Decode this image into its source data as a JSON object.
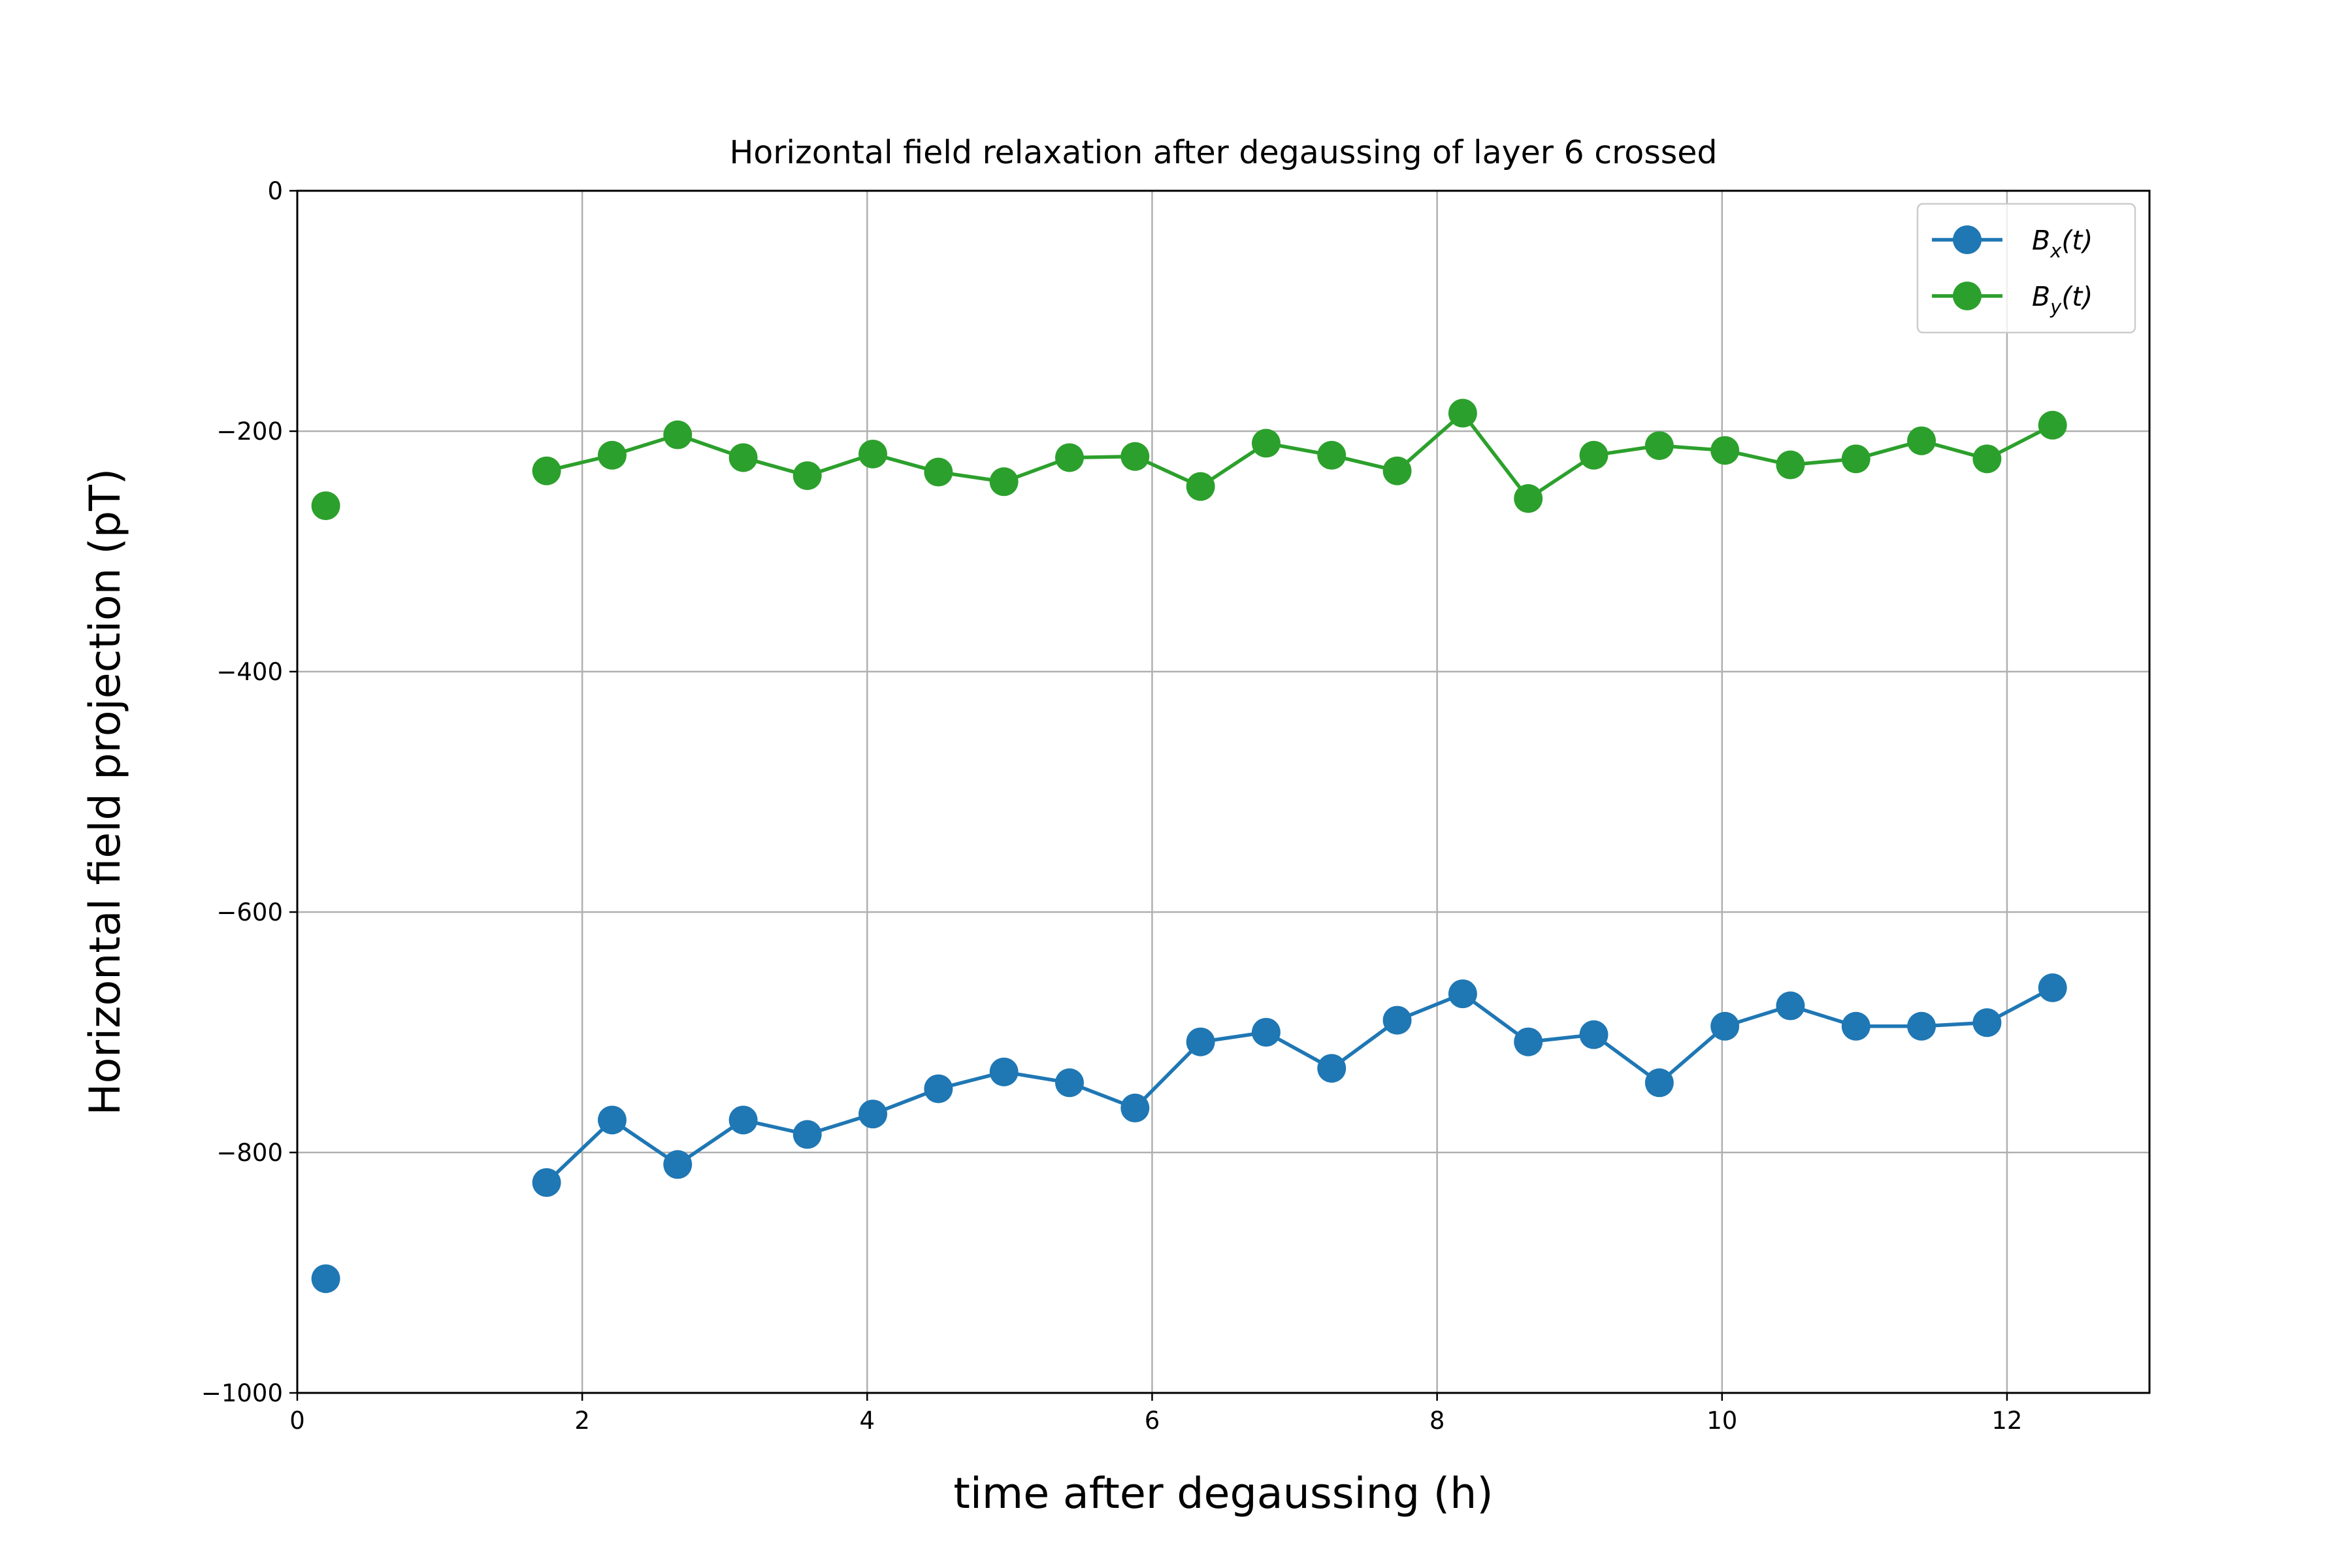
{
  "chart_data": {
    "type": "line",
    "title": "Horizontal field relaxation after degaussing of layer 6 crossed",
    "xlabel": "time after degaussing (h)",
    "ylabel": "Horizontal field projection (pT)",
    "xlim": [
      0,
      13
    ],
    "ylim": [
      -1000,
      0
    ],
    "xticks": [
      0,
      2,
      4,
      6,
      8,
      10,
      12
    ],
    "yticks": [
      0,
      -200,
      -400,
      -600,
      -800,
      -1000
    ],
    "xtick_labels": [
      "0",
      "2",
      "4",
      "6",
      "8",
      "10",
      "12"
    ],
    "ytick_labels": [
      "0",
      "−200",
      "−400",
      "−600",
      "−800",
      "−1000"
    ],
    "grid": true,
    "legend_position": "top-right",
    "series": [
      {
        "name": "Bx(t)",
        "legend_main": "B",
        "legend_sub": "x",
        "legend_tail": "(t)",
        "color": "#1f77b4",
        "segments": [
          [
            [
              0.2,
              -905
            ]
          ],
          [
            [
              1.75,
              -825
            ],
            [
              2.21,
              -773
            ],
            [
              2.67,
              -810
            ],
            [
              3.13,
              -773
            ],
            [
              3.58,
              -785
            ],
            [
              4.04,
              -768
            ],
            [
              4.5,
              -747
            ],
            [
              4.96,
              -733
            ],
            [
              5.42,
              -742
            ],
            [
              5.88,
              -763
            ],
            [
              6.34,
              -708
            ],
            [
              6.8,
              -700
            ],
            [
              7.26,
              -730
            ],
            [
              7.72,
              -690
            ],
            [
              8.18,
              -668
            ],
            [
              8.64,
              -708
            ],
            [
              9.1,
              -702
            ],
            [
              9.56,
              -742
            ],
            [
              10.02,
              -695
            ],
            [
              10.48,
              -678
            ],
            [
              10.94,
              -695
            ],
            [
              11.4,
              -695
            ],
            [
              11.86,
              -692
            ],
            [
              12.32,
              -663
            ]
          ]
        ]
      },
      {
        "name": "By(t)",
        "legend_main": "B",
        "legend_sub": "y",
        "legend_tail": "(t)",
        "color": "#2ca02c",
        "segments": [
          [
            [
              0.2,
              -262
            ]
          ],
          [
            [
              1.75,
              -233
            ],
            [
              2.21,
              -220
            ],
            [
              2.67,
              -203
            ],
            [
              3.13,
              -222
            ],
            [
              3.58,
              -237
            ],
            [
              4.04,
              -219
            ],
            [
              4.5,
              -234
            ],
            [
              4.96,
              -242
            ],
            [
              5.42,
              -222
            ],
            [
              5.88,
              -221
            ],
            [
              6.34,
              -246
            ],
            [
              6.8,
              -210
            ],
            [
              7.26,
              -220
            ],
            [
              7.72,
              -233
            ],
            [
              8.18,
              -185
            ],
            [
              8.64,
              -256
            ],
            [
              9.1,
              -220
            ],
            [
              9.56,
              -212
            ],
            [
              10.02,
              -216
            ],
            [
              10.48,
              -228
            ],
            [
              10.94,
              -223
            ],
            [
              11.4,
              -208
            ],
            [
              11.86,
              -223
            ],
            [
              12.32,
              -195
            ]
          ]
        ]
      }
    ]
  }
}
